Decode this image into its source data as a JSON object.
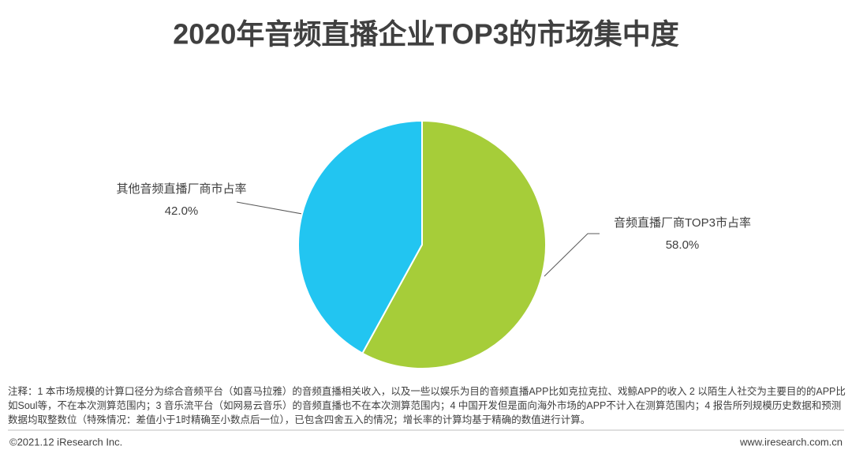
{
  "chart_data": {
    "type": "pie",
    "title": "2020年音频直播企业TOP3的市场集中度",
    "categories": [
      "音频直播厂商TOP3市占率",
      "其他音频直播厂商市占率"
    ],
    "values": [
      58,
      42
    ],
    "value_labels": [
      "58.0%",
      "42.0%"
    ],
    "colors": [
      "#a6cd39",
      "#22c5f1"
    ]
  },
  "note": "注释：1 本市场规模的计算口径分为综合音频平台（如喜马拉雅）的音频直播相关收入，以及一些以娱乐为目的音频直播APP比如克拉克拉、戏鲸APP的收入 2 以陌生人社交为主要目的的APP比如Soul等，不在本次测算范围内；3 音乐流平台（如网易云音乐）的音频直播也不在本次测算范围内；4 中国开发但是面向海外市场的APP不计入在测算范围内；4 报告所列规模历史数据和预测数据均取整数位（特殊情况：差值小于1时精确至小数点后一位），已包含四舍五入的情况；增长率的计算均基于精确的数值进行计算。",
  "footer": {
    "left": "©2021.12 iResearch Inc.",
    "right": "www.iresearch.com.cn"
  }
}
